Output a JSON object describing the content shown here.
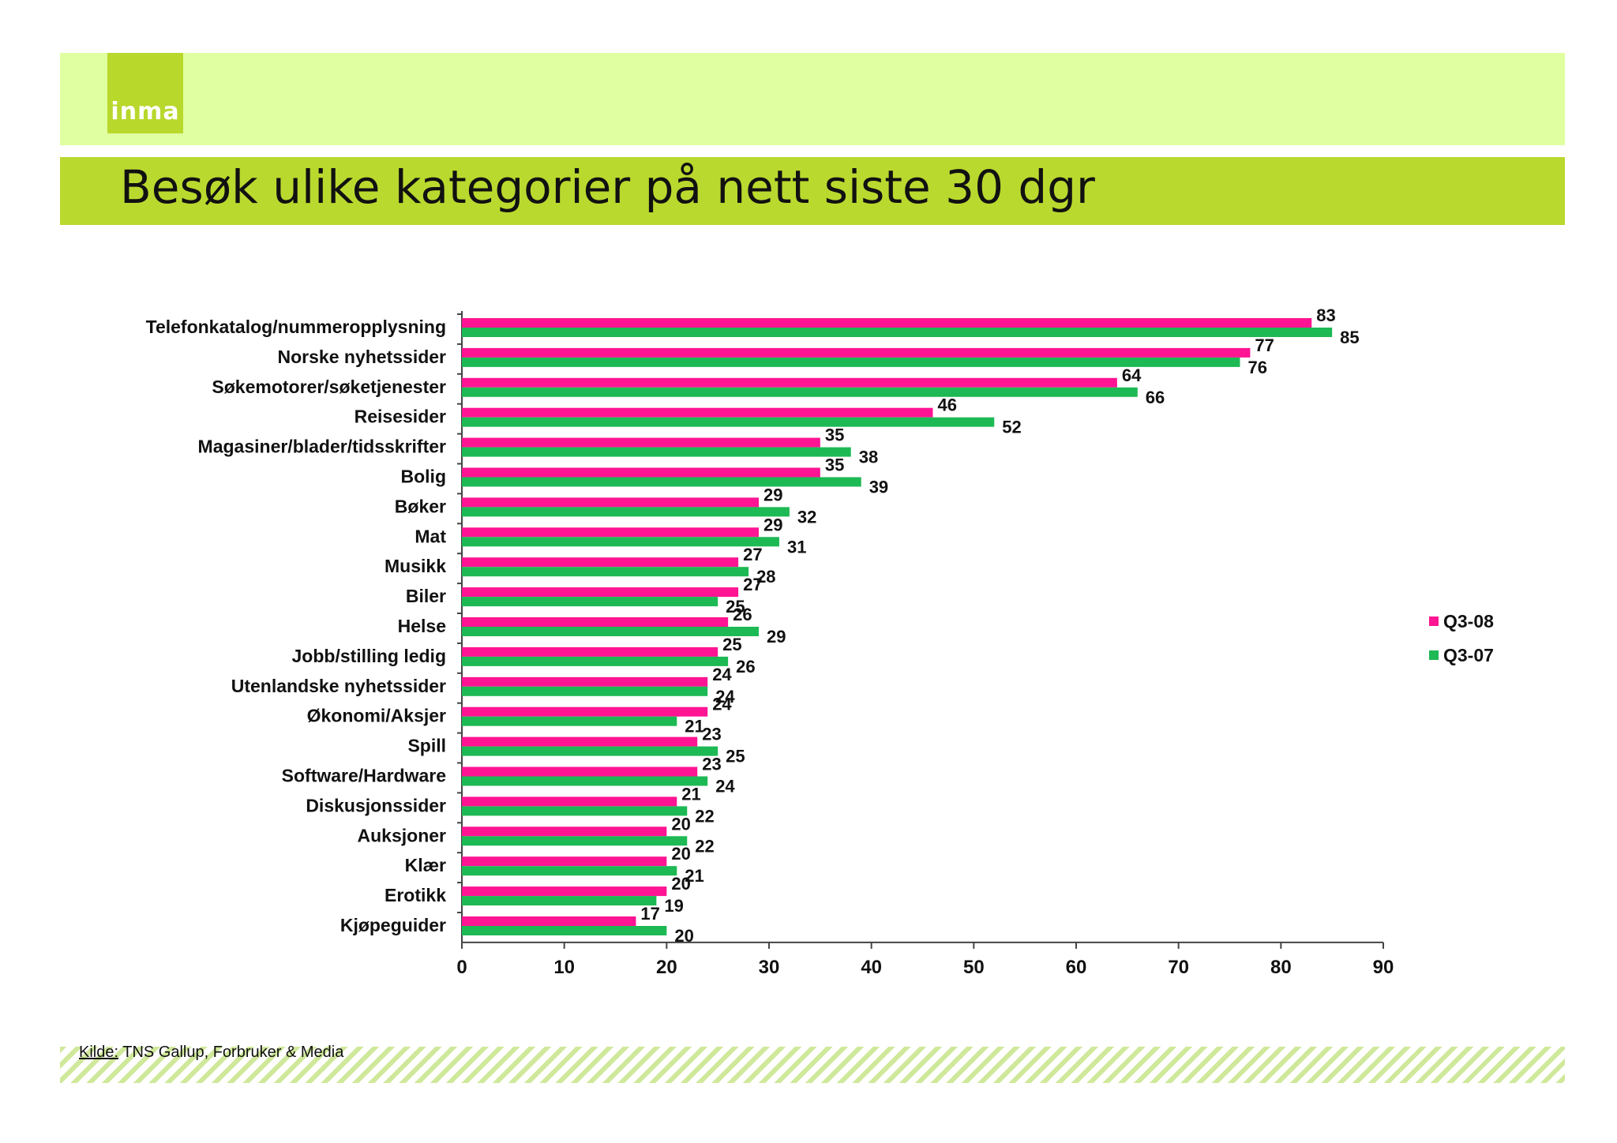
{
  "header": {
    "logo_text": "inma",
    "title": "Besøk ulike kategorier på nett siste 30 dgr"
  },
  "footer": {
    "source_label": "Kilde:",
    "source_text": " TNS Gallup, Forbruker & Media"
  },
  "colors": {
    "top_band": "#dfffa0",
    "title_band": "#bad92e",
    "q3_08": "#ff1493",
    "q3_07": "#1db954"
  },
  "chart_data": {
    "type": "bar",
    "orientation": "horizontal",
    "title": "",
    "xlabel": "",
    "ylabel": "",
    "xlim": [
      0,
      90
    ],
    "x_ticks": [
      "0",
      "10",
      "20",
      "30",
      "40",
      "50",
      "60",
      "70",
      "80",
      "90"
    ],
    "grid": false,
    "legend_position": "right",
    "categories": [
      "Telefonkatalog/nummeropplysning",
      "Norske nyhetssider",
      "Søkemotorer/søketjenester",
      "Reisesider",
      "Magasiner/blader/tidsskrifter",
      "Bolig",
      "Bøker",
      "Mat",
      "Musikk",
      "Biler",
      "Helse",
      "Jobb/stilling ledig",
      "Utenlandske nyhetssider",
      "Økonomi/Aksjer",
      "Spill",
      "Software/Hardware",
      "Diskusjonssider",
      "Auksjoner",
      "Klær",
      "Erotikk",
      "Kjøpeguider"
    ],
    "series": [
      {
        "name": "Q3-08",
        "color": "#ff1493",
        "values": [
          83,
          77,
          64,
          46,
          35,
          35,
          29,
          29,
          27,
          27,
          26,
          25,
          24,
          24,
          23,
          23,
          21,
          20,
          20,
          20,
          17
        ]
      },
      {
        "name": "Q3-07",
        "color": "#1db954",
        "values": [
          85,
          76,
          66,
          52,
          38,
          39,
          32,
          31,
          28,
          25,
          29,
          26,
          24,
          21,
          25,
          24,
          22,
          22,
          21,
          19,
          20
        ]
      }
    ]
  }
}
